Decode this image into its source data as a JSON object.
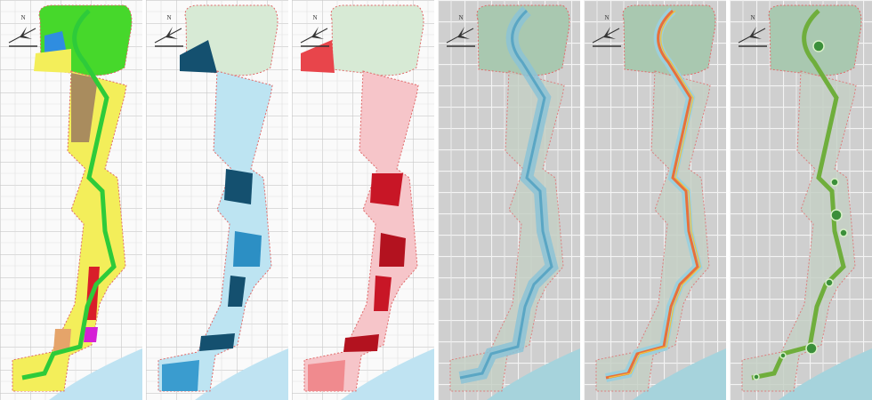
{
  "panels": [
    {
      "north": "N"
    },
    {
      "north": "N"
    },
    {
      "north": "N"
    },
    {
      "north": "N"
    },
    {
      "north": "N"
    },
    {
      "north": "N"
    }
  ]
}
